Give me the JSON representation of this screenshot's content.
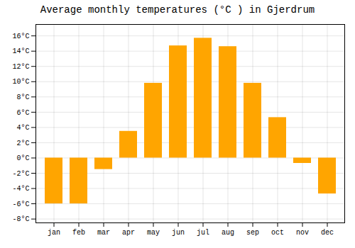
{
  "chart_data": {
    "type": "bar",
    "title": "Average monthly temperatures (°C ) in Gjerdrum",
    "categories": [
      "jan",
      "feb",
      "mar",
      "apr",
      "may",
      "jun",
      "jul",
      "aug",
      "sep",
      "oct",
      "nov",
      "dec"
    ],
    "values": [
      -6.0,
      -6.0,
      -1.5,
      3.5,
      9.8,
      14.7,
      15.7,
      14.6,
      9.8,
      5.3,
      -0.7,
      -4.7
    ],
    "color": "#FFA500",
    "ylim": [
      -8.5,
      17.5
    ],
    "yticks": [
      {
        "value": -8,
        "label": "-8°C"
      },
      {
        "value": -6,
        "label": "-6°C"
      },
      {
        "value": -4,
        "label": "-4°C"
      },
      {
        "value": -2,
        "label": "-2°C"
      },
      {
        "value": 0,
        "label": "0°C"
      },
      {
        "value": 2,
        "label": "2°C"
      },
      {
        "value": 4,
        "label": "4°C"
      },
      {
        "value": 6,
        "label": "6°C"
      },
      {
        "value": 8,
        "label": "8°C"
      },
      {
        "value": 10,
        "label": "10°C"
      },
      {
        "value": 12,
        "label": "12°C"
      },
      {
        "value": 14,
        "label": "14°C"
      },
      {
        "value": 16,
        "label": "16°C"
      }
    ],
    "grid": true
  }
}
